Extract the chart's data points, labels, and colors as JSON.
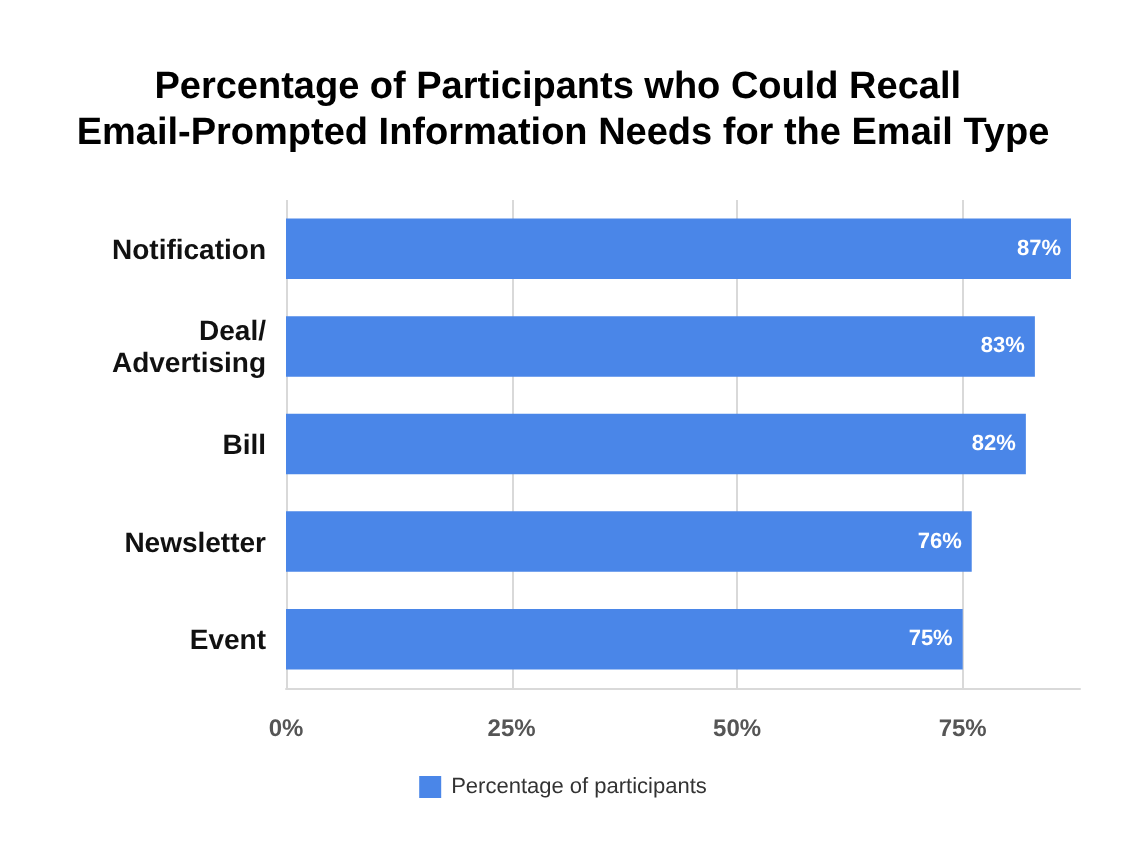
{
  "chart_data": {
    "type": "bar",
    "orientation": "horizontal",
    "title": "Percentage of Participants who Could Recall Email-Prompted Information Needs for the Email Type",
    "categories": [
      "Notification",
      "Deal/\nAdvertising",
      "Bill",
      "Newsletter",
      "Event"
    ],
    "series": [
      {
        "name": "Percentage of participants",
        "color": "#4a86e8",
        "values": [
          87,
          83,
          82,
          76,
          75
        ],
        "value_labels": [
          "87%",
          "83%",
          "82%",
          "76%",
          "75%"
        ]
      }
    ],
    "xlim": [
      0,
      88
    ],
    "xticks": [
      {
        "value": 0,
        "label": "0%"
      },
      {
        "value": 25,
        "label": "25%"
      },
      {
        "value": 50,
        "label": "50%"
      },
      {
        "value": 75,
        "label": "75%"
      }
    ],
    "grid": "x",
    "legend": "bottom"
  }
}
